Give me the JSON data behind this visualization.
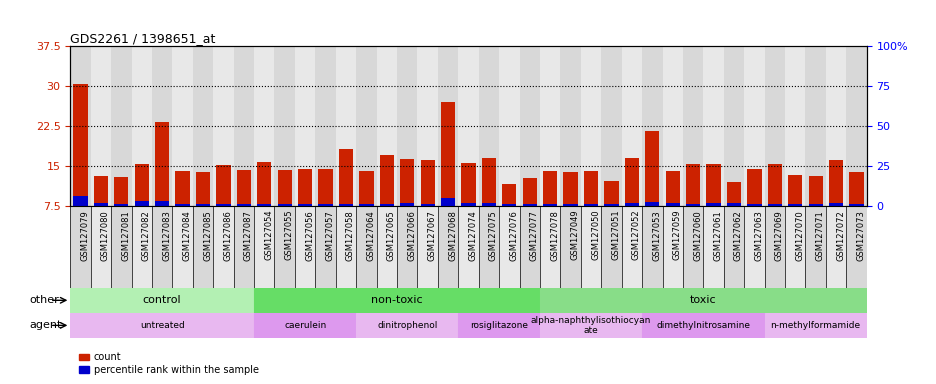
{
  "title": "GDS2261 / 1398651_at",
  "samples": [
    "GSM127079",
    "GSM127080",
    "GSM127081",
    "GSM127082",
    "GSM127083",
    "GSM127084",
    "GSM127085",
    "GSM127086",
    "GSM127087",
    "GSM127054",
    "GSM127055",
    "GSM127056",
    "GSM127057",
    "GSM127058",
    "GSM127064",
    "GSM127065",
    "GSM127066",
    "GSM127067",
    "GSM127068",
    "GSM127074",
    "GSM127075",
    "GSM127076",
    "GSM127077",
    "GSM127078",
    "GSM127049",
    "GSM127050",
    "GSM127051",
    "GSM127052",
    "GSM127053",
    "GSM127059",
    "GSM127060",
    "GSM127061",
    "GSM127062",
    "GSM127063",
    "GSM127069",
    "GSM127070",
    "GSM127071",
    "GSM127072",
    "GSM127073"
  ],
  "count_values": [
    30.3,
    13.0,
    12.8,
    15.3,
    23.3,
    14.1,
    13.9,
    15.2,
    14.3,
    15.8,
    14.3,
    14.4,
    14.4,
    18.1,
    14.0,
    17.0,
    16.2,
    16.0,
    27.0,
    15.5,
    16.5,
    11.5,
    12.7,
    14.1,
    13.8,
    14.1,
    12.2,
    16.5,
    21.5,
    14.0,
    15.3,
    15.3,
    12.0,
    14.4,
    15.3,
    13.2,
    13.0,
    16.0,
    13.8
  ],
  "pct_bar_values": [
    1.8,
    0.5,
    0.3,
    0.8,
    0.8,
    0.3,
    0.3,
    0.3,
    0.3,
    0.3,
    0.3,
    0.3,
    0.3,
    0.3,
    0.3,
    0.3,
    0.5,
    0.3,
    1.5,
    0.5,
    0.5,
    0.3,
    0.3,
    0.3,
    0.3,
    0.3,
    0.3,
    0.5,
    0.6,
    0.5,
    0.3,
    0.5,
    0.5,
    0.3,
    0.3,
    0.3,
    0.3,
    0.5,
    0.3
  ],
  "bar_color_red": "#cc2200",
  "bar_color_blue": "#0000cc",
  "ylim_left": [
    7.5,
    37.5
  ],
  "ylim_right": [
    0,
    100
  ],
  "yticks_left": [
    7.5,
    15.0,
    22.5,
    30.0,
    37.5
  ],
  "ytick_left_labels": [
    "7.5",
    "15",
    "22.5",
    "30",
    "37.5"
  ],
  "yticks_right": [
    0,
    25,
    50,
    75,
    100
  ],
  "ytick_right_labels": [
    "0",
    "25",
    "50",
    "75",
    "100%"
  ],
  "hlines": [
    15.0,
    22.5,
    30.0
  ],
  "groups_other": [
    {
      "label": "control",
      "start": 0,
      "end": 9,
      "color": "#b3f0b3"
    },
    {
      "label": "non-toxic",
      "start": 9,
      "end": 23,
      "color": "#66dd66"
    },
    {
      "label": "toxic",
      "start": 23,
      "end": 39,
      "color": "#88dd88"
    }
  ],
  "groups_agent": [
    {
      "label": "untreated",
      "start": 0,
      "end": 9,
      "color": "#e8b8f0"
    },
    {
      "label": "caerulein",
      "start": 9,
      "end": 14,
      "color": "#dd99ee"
    },
    {
      "label": "dinitrophenol",
      "start": 14,
      "end": 19,
      "color": "#e8b8f0"
    },
    {
      "label": "rosiglitazone",
      "start": 19,
      "end": 23,
      "color": "#dd99ee"
    },
    {
      "label": "alpha-naphthylisothiocyan\nate",
      "start": 23,
      "end": 28,
      "color": "#e8b8f0"
    },
    {
      "label": "dimethylnitrosamine",
      "start": 28,
      "end": 34,
      "color": "#dd99ee"
    },
    {
      "label": "n-methylformamide",
      "start": 34,
      "end": 39,
      "color": "#e8b8f0"
    }
  ],
  "legend_count_label": "count",
  "legend_pct_label": "percentile rank within the sample",
  "other_label": "other",
  "agent_label": "agent",
  "cell_bg_colors": [
    "#d8d8d8",
    "#e8e8e8"
  ]
}
